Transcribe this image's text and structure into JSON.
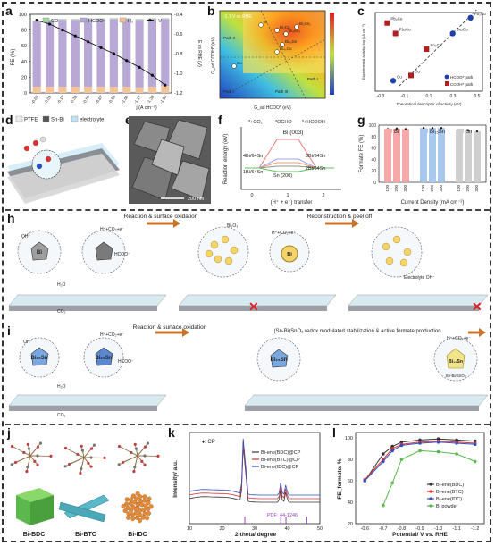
{
  "panels": {
    "a": "a",
    "b": "b",
    "c": "c",
    "d": "d",
    "e": "e",
    "f": "f",
    "g": "g",
    "h": "h",
    "i": "i",
    "j": "j",
    "k": "k",
    "l": "l"
  },
  "panel_a": {
    "legend": [
      "CO",
      "HCOO⁻",
      "H₂",
      "j–V"
    ],
    "ylabel": "FE (%)",
    "y2label": "E vs RHE (V)",
    "xlabel": "j (A cm⁻²)",
    "y_ticks": [
      "0",
      "20",
      "40",
      "60",
      "80",
      "100"
    ],
    "y2_ticks": [
      "-0.4",
      "-0.6",
      "-0.8",
      "-1.0",
      "-1.2"
    ],
    "x_ticks": [
      "-0.05",
      "-0.09",
      "-0.17",
      "-0.33",
      "-0.50",
      "-0.67",
      "-0.83",
      "-1.00",
      "-1.17",
      "-1.33",
      "-1.50"
    ]
  },
  "chart_data": [
    {
      "type": "bar",
      "panel": "a",
      "categories": [
        "-0.05",
        "-0.09",
        "-0.17",
        "-0.33",
        "-0.50",
        "-0.67",
        "-0.83",
        "-1.00",
        "-1.17",
        "-1.33",
        "-1.50"
      ],
      "series": [
        {
          "name": "H₂",
          "values": [
            8,
            8,
            8,
            8,
            8,
            8,
            8,
            8,
            7,
            8,
            9
          ]
        },
        {
          "name": "HCOO⁻",
          "values": [
            83,
            84,
            85,
            85,
            86,
            86,
            86,
            86,
            86,
            86,
            85
          ]
        },
        {
          "name": "CO",
          "values": [
            1,
            1,
            1,
            1,
            1,
            1,
            1,
            1,
            1,
            1,
            1
          ]
        },
        {
          "name": "j–V",
          "values": [
            -0.46,
            -0.5,
            -0.56,
            -0.62,
            -0.68,
            -0.74,
            -0.8,
            -0.87,
            -0.94,
            -1.02,
            -1.12
          ]
        }
      ],
      "ylabel": "FE (%)",
      "xlabel": "j (A cm⁻²)",
      "ylim": [
        0,
        100
      ],
      "y2lim": [
        -1.2,
        -0.4
      ]
    },
    {
      "type": "heatmap",
      "panel": "b",
      "title": "-1.7 V vs RHE",
      "xlabel": "G_ad HCOO* (eV)",
      "ylabel": "G_ad COOH* (eV)",
      "points": [
        "Bi",
        "Bi₂Cu",
        "Bi₄Sn₂",
        "Bi₂Sn₂",
        "Bi₄₀Sn",
        "Bi₄₀Cu",
        "Cu"
      ],
      "paths": [
        "Path II",
        "Path I",
        "Path III",
        "Path I"
      ]
    },
    {
      "type": "scatter",
      "panel": "c",
      "xlabel": "Theoretical descriptor of activity (eV)",
      "ylabel": "Experimental activity, log j (A cm⁻²)",
      "legend": [
        "HCOO* path",
        "COOH* path"
      ],
      "x_ticks": [
        "-0.3",
        "-0.1",
        "0.1",
        "0.3",
        "0.5"
      ],
      "points": [
        {
          "label": "Pb₂Cu",
          "x": -0.25,
          "y": -0.2,
          "series": "COOH* path"
        },
        {
          "label": "Pb₂Cu",
          "x": -0.18,
          "y": -0.4,
          "series": "COOH* path"
        },
        {
          "label": "Sn₂Cu",
          "x": 0.08,
          "y": -0.7,
          "series": "COOH* path"
        },
        {
          "label": "Cu",
          "x": -0.05,
          "y": -1.2,
          "series": "COOH* path"
        },
        {
          "label": "Pb₂Cu",
          "x": 0.45,
          "y": -0.1,
          "series": "HCOO* path"
        },
        {
          "label": "Sn₂Cu",
          "x": 0.3,
          "y": -0.4,
          "series": "HCOO* path"
        },
        {
          "label": "Cu",
          "x": -0.2,
          "y": -1.3,
          "series": "HCOO* path"
        }
      ]
    },
    {
      "type": "line",
      "panel": "f",
      "title": "Bi (003)",
      "legend": [
        "*+CO₂",
        "*OCHO",
        "*+HCOOH"
      ],
      "ylabel": "Reaction energy (eV)",
      "xlabel": "(H⁺ + e⁻) transfer",
      "x_ticks": [
        "0",
        "1",
        "2"
      ],
      "labels": [
        "4Bi/64Sn",
        "8Bi/64Sn",
        "1Bi/64Sn",
        "Sn (200)",
        "2Bi/64Sn"
      ]
    },
    {
      "type": "bar",
      "panel": "g",
      "ylabel": "Formate FE (%)",
      "xlabel": "Current Density (mA cm⁻²)",
      "categories": [
        "100",
        "200",
        "300"
      ],
      "series": [
        {
          "name": "Bi",
          "values": [
            93,
            94,
            93
          ]
        },
        {
          "name": "Bi₁₅Sn",
          "values": [
            95,
            95,
            95
          ]
        },
        {
          "name": "Sn",
          "values": [
            92,
            91,
            89
          ]
        }
      ],
      "y_ticks": [
        "0",
        "20",
        "40",
        "60",
        "80",
        "100"
      ],
      "ylim": [
        0,
        100
      ]
    },
    {
      "type": "line",
      "panel": "k",
      "xlabel": "2-theta/ degree",
      "ylabel": "Intensity/ a.u.",
      "x_ticks": [
        "10",
        "20",
        "30",
        "40",
        "50"
      ],
      "series": [
        {
          "name": "Bi-ene(BDC)@CP",
          "color": "#333333"
        },
        {
          "name": "Bi-ene(BTC)@CP",
          "color": "#e03030"
        },
        {
          "name": "Bi-ene(IDC)@CP",
          "color": "#3050c0"
        }
      ],
      "annotation": "♦: CP",
      "pdf": "PDF: 44-1246"
    },
    {
      "type": "line",
      "panel": "l",
      "xlabel": "Potential/ V vs. RHE",
      "ylabel": "FE_formate/ %",
      "x": [
        -0.6,
        -0.7,
        -0.75,
        -0.8,
        -0.9,
        -1.0,
        -1.1,
        -1.2
      ],
      "x_ticks": [
        "-0.6",
        "-0.7",
        "-0.8",
        "-0.9",
        "-1.0",
        "-1.1",
        "-1.2"
      ],
      "y_ticks": [
        "20",
        "40",
        "60",
        "80",
        "100"
      ],
      "ylim": [
        20,
        105
      ],
      "series": [
        {
          "name": "Bi-ene(BDC)",
          "color": "#333333",
          "values": [
            60,
            85,
            92,
            96,
            98,
            99,
            98,
            97
          ]
        },
        {
          "name": "Bi-ene(BTC)",
          "color": "#e03030",
          "values": [
            61,
            80,
            90,
            94,
            96,
            97,
            96,
            95
          ]
        },
        {
          "name": "Bi-ene(IDC)",
          "color": "#3050c0",
          "values": [
            60,
            78,
            88,
            93,
            95,
            96,
            95,
            94
          ]
        },
        {
          "name": "Bi powder",
          "color": "#5ab84c",
          "values": [
            null,
            37,
            58,
            80,
            88,
            87,
            85,
            78
          ]
        }
      ]
    }
  ],
  "panel_d": {
    "legend": [
      "PTFE",
      "Sn-Bi",
      "electrolyte"
    ]
  },
  "panel_e": {
    "scalebar": "200 nm"
  },
  "panel_h": {
    "step1": "Reaction & surface oxidation",
    "step2": "Reconstruction & peel off",
    "ions": [
      "OH⁻",
      "H⁺+CO₂+e⁻",
      "HCOO⁻",
      "H₂O",
      "CO₂",
      "Bi₂O₃",
      "Electrolyte OH⁻"
    ],
    "crystal": "Bi"
  },
  "panel_i": {
    "step1": "Reaction & surface oxidation",
    "step2": "(Sn-Bi)SnO₂ redox modulated stabilization & active formate production",
    "crystal": "Bi₁₅Sn",
    "shell": "Sn-Bi/SnO₂",
    "ions": [
      "OH⁻",
      "H⁺+CO₂+e⁻",
      "HCOO⁻",
      "H₂O",
      "CO₂"
    ]
  },
  "panel_j": {
    "labels": [
      "Bi-BDC",
      "Bi-BTC",
      "Bi-IDC"
    ]
  },
  "colors": {
    "co": "#a8d8a0",
    "hcoo": "#b7a8d6",
    "h2": "#f2c49a",
    "bi": "#f7a8a8",
    "bisn": "#a8c8ee",
    "sn": "#cfcfcf"
  }
}
